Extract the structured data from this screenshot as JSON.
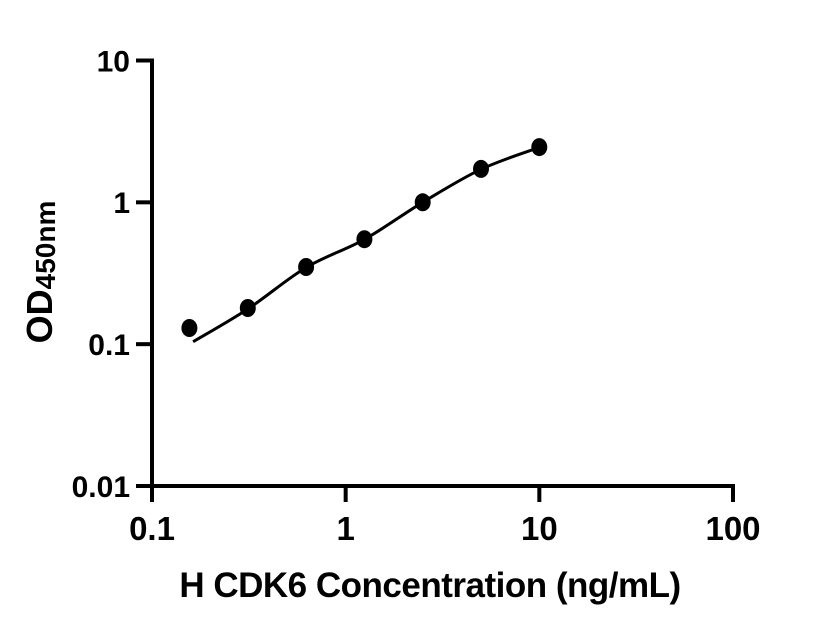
{
  "figure": {
    "background_color": "#ffffff",
    "foreground_color": "#000000"
  },
  "chart_data": {
    "type": "scatter",
    "subtype": "elisa-standard-curve",
    "title": "",
    "xlabel": "H CDK6 Concentration (ng/mL)",
    "ylabel": {
      "main": "OD",
      "subscript": "450nm"
    },
    "xscale": "log",
    "yscale": "log",
    "xlim": [
      0.1,
      100
    ],
    "ylim": [
      0.01,
      10
    ],
    "grid": false,
    "legend": "none",
    "marker_color": "#000000",
    "line_color": "#000000",
    "xticks": [
      {
        "value": 0.1,
        "label": "0.1"
      },
      {
        "value": 1,
        "label": "1"
      },
      {
        "value": 10,
        "label": "10"
      },
      {
        "value": 100,
        "label": "100"
      }
    ],
    "yticks": [
      {
        "value": 10,
        "label": "10"
      },
      {
        "value": 1,
        "label": "1"
      },
      {
        "value": 0.1,
        "label": "0.1"
      },
      {
        "value": 0.01,
        "label": "0.01"
      }
    ],
    "points": [
      {
        "x": 0.156,
        "y": 0.13
      },
      {
        "x": 0.3125,
        "y": 0.18
      },
      {
        "x": 0.625,
        "y": 0.35
      },
      {
        "x": 1.25,
        "y": 0.55
      },
      {
        "x": 2.5,
        "y": 1.0
      },
      {
        "x": 5,
        "y": 1.72
      },
      {
        "x": 10,
        "y": 2.45
      }
    ],
    "fit_curve": [
      {
        "x": 0.163,
        "y": 0.104
      },
      {
        "x": 0.3125,
        "y": 0.177
      },
      {
        "x": 0.625,
        "y": 0.347
      },
      {
        "x": 1.25,
        "y": 0.548
      },
      {
        "x": 2.5,
        "y": 1.0
      },
      {
        "x": 5,
        "y": 1.71
      },
      {
        "x": 10,
        "y": 2.44
      }
    ]
  }
}
